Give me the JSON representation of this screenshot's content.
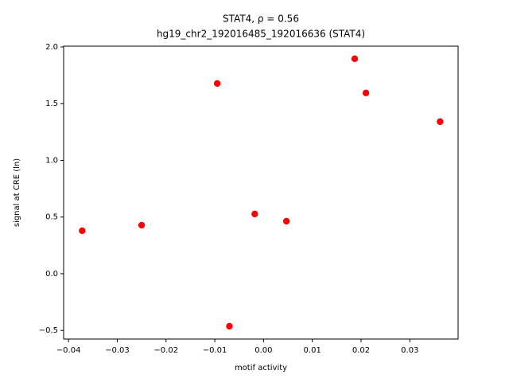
{
  "chart_data": {
    "type": "scatter",
    "title": "STAT4, ρ = 0.56",
    "subtitle": "hg19_chr2_192016485_192016636 (STAT4)",
    "x_label": "motif activity",
    "y_label": "signal at CRE (ln)",
    "color": "#ff0000",
    "x": [
      -0.0372,
      -0.025,
      -0.0095,
      -0.007,
      -0.0018,
      0.0047,
      0.0187,
      0.021,
      0.0362
    ],
    "values": [
      0.379,
      0.428,
      1.678,
      -0.463,
      0.527,
      0.463,
      1.896,
      1.594,
      1.341
    ],
    "xlim": [
      -0.041,
      0.0399
    ],
    "ylim": [
      -0.576,
      2.007
    ],
    "xticks": [
      {
        "value": -0.04,
        "label": "−0.04"
      },
      {
        "value": -0.03,
        "label": "−0.03"
      },
      {
        "value": -0.02,
        "label": "−0.02"
      },
      {
        "value": -0.01,
        "label": "−0.01"
      },
      {
        "value": 0,
        "label": "0.00"
      },
      0.01,
      0.02,
      0.03
    ],
    "yticks": [
      {
        "value": -0.5,
        "label": "−0.5"
      },
      {
        "value": 0,
        "label": "0.0"
      },
      0.5,
      {
        "value": 1,
        "label": "1.0"
      },
      1.5,
      {
        "value": 2,
        "label": "2.0"
      }
    ],
    "grid": false
  }
}
